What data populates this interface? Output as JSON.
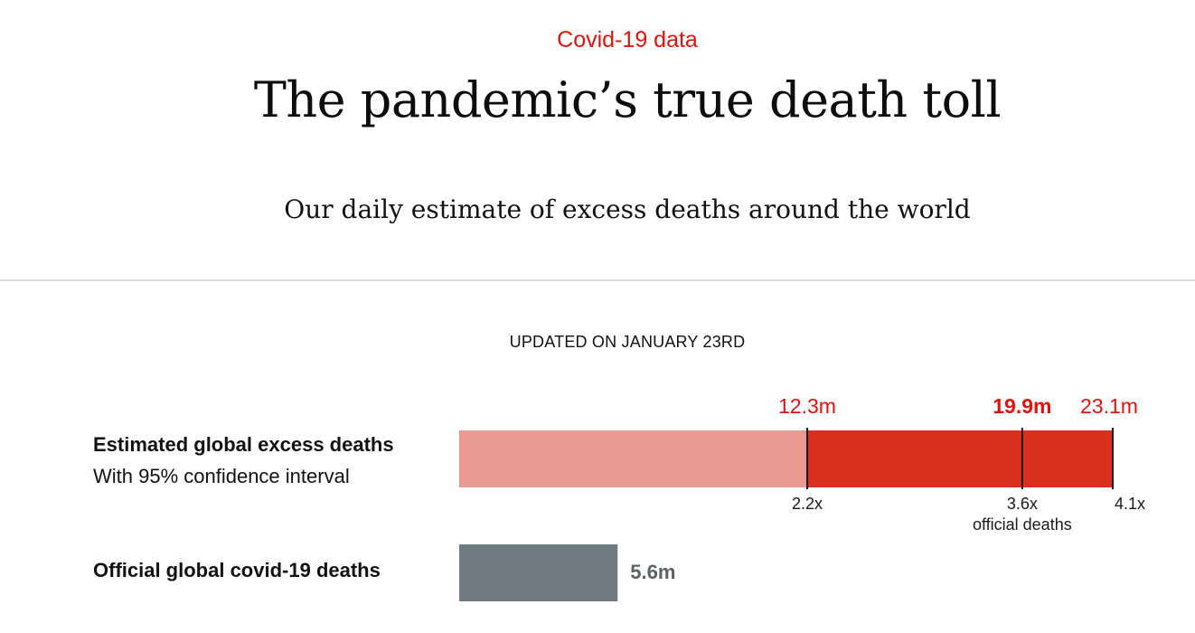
{
  "header": {
    "kicker": "Covid-19 data",
    "title": "The pandemic’s true death toll",
    "subtitle": "Our daily estimate of excess deaths around the world"
  },
  "updated_label": "UPDATED ON JANUARY 23RD",
  "colors": {
    "accent": "#e3120b",
    "interval_low": "#eb9a91",
    "interval_high": "#d9301e",
    "official": "#6f7b80",
    "official_label": "#5b6266"
  },
  "chart_data": {
    "type": "bar",
    "orientation": "horizontal",
    "xlim": [
      0,
      23.1
    ],
    "units": "m",
    "rows": [
      {
        "label": "Estimated global excess deaths",
        "sublabel": "With 95% confidence interval",
        "kind": "interval",
        "low": 12.3,
        "central": 19.9,
        "high": 23.1,
        "low_label": "12.3m",
        "central_label": "19.9m",
        "high_label": "23.1m",
        "multiples": [
          {
            "at": 12.3,
            "label": "2.2x"
          },
          {
            "at": 19.9,
            "label": "3.6x",
            "note": "official deaths"
          },
          {
            "at": 23.1,
            "label": "4.1x"
          }
        ]
      },
      {
        "label": "Official global covid-19 deaths",
        "kind": "bar",
        "value": 5.6,
        "value_label": "5.6m"
      }
    ]
  }
}
